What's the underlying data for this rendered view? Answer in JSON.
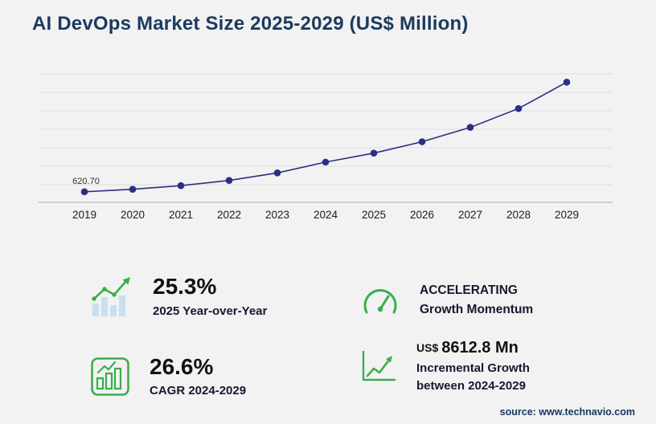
{
  "page": {
    "title": "AI DevOps Market Size 2025-2029 (US$ Million)",
    "source": "source: www.technavio.com"
  },
  "colors": {
    "title_navy": "#1b3a5e",
    "series_indigo": "#2d2e83",
    "accent_green": "#3aae4a",
    "icon_light_blue": "#c8dff2",
    "background": "#f2f2f3"
  },
  "chart_data": {
    "type": "line",
    "title": "AI DevOps Market Size 2025-2029 (US$ Million)",
    "x": [
      "2019",
      "2020",
      "2021",
      "2022",
      "2023",
      "2024",
      "2025",
      "2026",
      "2027",
      "2028",
      "2029"
    ],
    "values": [
      620.7,
      893,
      1284,
      1847,
      2656,
      3819.4,
      4785.7,
      6013,
      7565,
      9592,
      12432.2
    ],
    "first_point_label": "620.70",
    "xlabel": "",
    "ylabel": "",
    "ylim": [
      0,
      13500
    ],
    "grid": "horizontal",
    "legend": "none",
    "line_color": "#2d2e83",
    "point_color": "#2d2e83"
  },
  "stats": [
    {
      "icon": "bar-chart-growth-icon",
      "value": "25.3%",
      "label": "2025 Year-over-Year"
    },
    {
      "icon": "speedometer-icon",
      "line1": "ACCELERATING",
      "line2": "Growth Momentum"
    },
    {
      "icon": "bar-chart-outline-icon",
      "value": "26.6%",
      "label": "CAGR 2024-2029"
    },
    {
      "icon": "line-chart-arrow-icon",
      "currency": "US$",
      "value": "8612.8 Mn",
      "label1": "Incremental Growth",
      "label2": "between 2024-2029"
    }
  ]
}
